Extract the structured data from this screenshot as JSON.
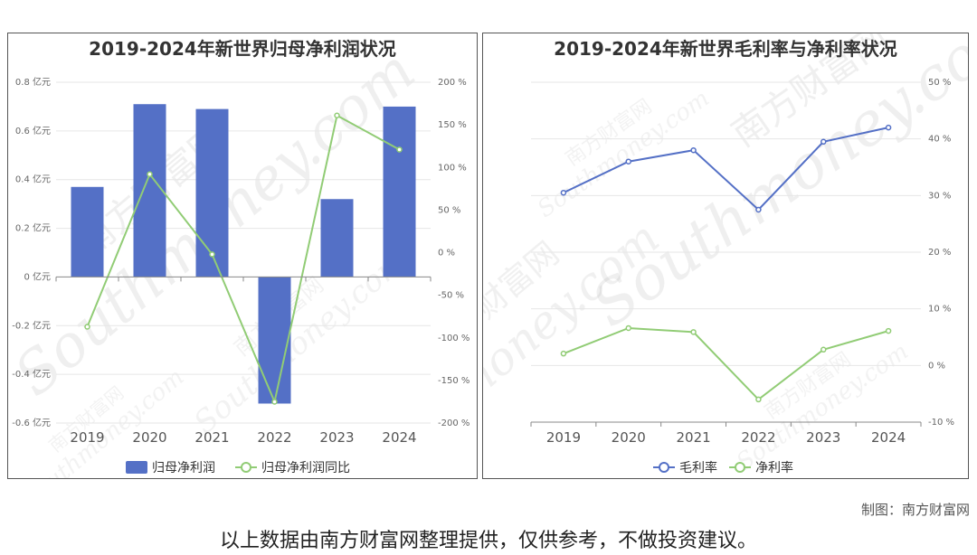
{
  "colors": {
    "bar": "#5470c6",
    "green": "#91cc75",
    "blue": "#5470c6",
    "axis_text": "#666666"
  },
  "chart_data": [
    {
      "type": "bar",
      "title": "2019-2024年新世界归母净利润状况",
      "categories": [
        "2019",
        "2020",
        "2021",
        "2022",
        "2023",
        "2024"
      ],
      "y_left_ticks": [
        "0.8 亿元",
        "0.6 亿元",
        "0.4 亿元",
        "0.2 亿元",
        "0 亿元",
        "-0.2 亿元",
        "-0.4 亿元",
        "-0.6 亿元"
      ],
      "y_right_ticks": [
        "200 %",
        "150 %",
        "100 %",
        "50 %",
        "0 %",
        "-50 %",
        "-100 %",
        "-150 %",
        "-200 %"
      ],
      "ylim_left": [
        -0.6,
        0.8
      ],
      "ylim_right": [
        -200,
        200
      ],
      "series": [
        {
          "name": "归母净利润",
          "type": "bar",
          "axis": "left",
          "unit": "亿元",
          "values": [
            0.37,
            0.71,
            0.69,
            -0.52,
            0.32,
            0.7
          ]
        },
        {
          "name": "归母净利润同比",
          "type": "line",
          "axis": "right",
          "unit": "%",
          "values": [
            -87,
            92,
            -2,
            -175,
            161,
            121
          ]
        }
      ],
      "legend_position": "bottom-center",
      "grid": true
    },
    {
      "type": "line",
      "title": "2019-2024年新世界毛利率与净利率状况",
      "categories": [
        "2019",
        "2020",
        "2021",
        "2022",
        "2023",
        "2024"
      ],
      "y_right_ticks": [
        "50 %",
        "40 %",
        "30 %",
        "20 %",
        "10 %",
        "0 %",
        "-10 %"
      ],
      "ylim": [
        -10,
        50
      ],
      "series": [
        {
          "name": "毛利率",
          "unit": "%",
          "values": [
            30.5,
            36,
            38,
            27.5,
            39.5,
            42
          ]
        },
        {
          "name": "净利率",
          "unit": "%",
          "values": [
            2.1,
            6.6,
            5.9,
            -6,
            2.8,
            6.1
          ]
        }
      ],
      "legend_position": "bottom-center",
      "grid": true
    }
  ],
  "watermark": {
    "brand_cn": "南方财富网",
    "brand_en": "Southmoney.com"
  },
  "footer": {
    "credit": "制图：南方财富网",
    "disclaimer": "以上数据由南方财富网整理提供，仅供参考，不做投资建议。"
  }
}
